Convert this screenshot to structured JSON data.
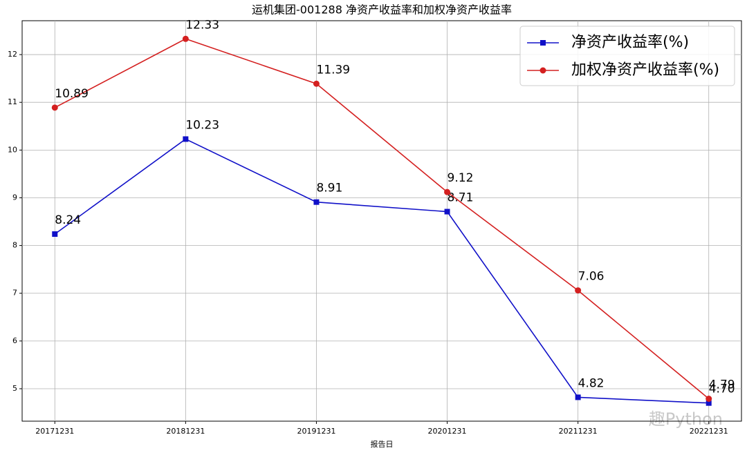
{
  "chart_data": {
    "type": "line",
    "title": "运机集团-001288 净资产收益率和加权净资产收益率",
    "x_label": "报告日",
    "categories": [
      "20171231",
      "20181231",
      "20191231",
      "20201231",
      "20211231",
      "20221231"
    ],
    "series": [
      {
        "name": "净资产收益率(%)",
        "color": "#1010c8",
        "marker": "square",
        "values": [
          8.24,
          10.23,
          8.91,
          8.71,
          4.82,
          4.7
        ],
        "value_labels": [
          "8.24",
          "10.23",
          "8.91",
          "8.71",
          "4.82",
          "4.70"
        ]
      },
      {
        "name": "加权净资产收益率(%)",
        "color": "#d42020",
        "marker": "circle",
        "values": [
          10.89,
          12.33,
          11.39,
          9.12,
          7.06,
          4.79
        ],
        "value_labels": [
          "10.89",
          "12.33",
          "11.39",
          "9.12",
          "7.06",
          "4.79"
        ]
      }
    ],
    "ylim": [
      4.32,
      12.71
    ],
    "yticks": [
      5,
      6,
      7,
      8,
      9,
      10,
      11,
      12
    ],
    "grid": true,
    "legend": "upper right",
    "watermark": "趣Python"
  }
}
